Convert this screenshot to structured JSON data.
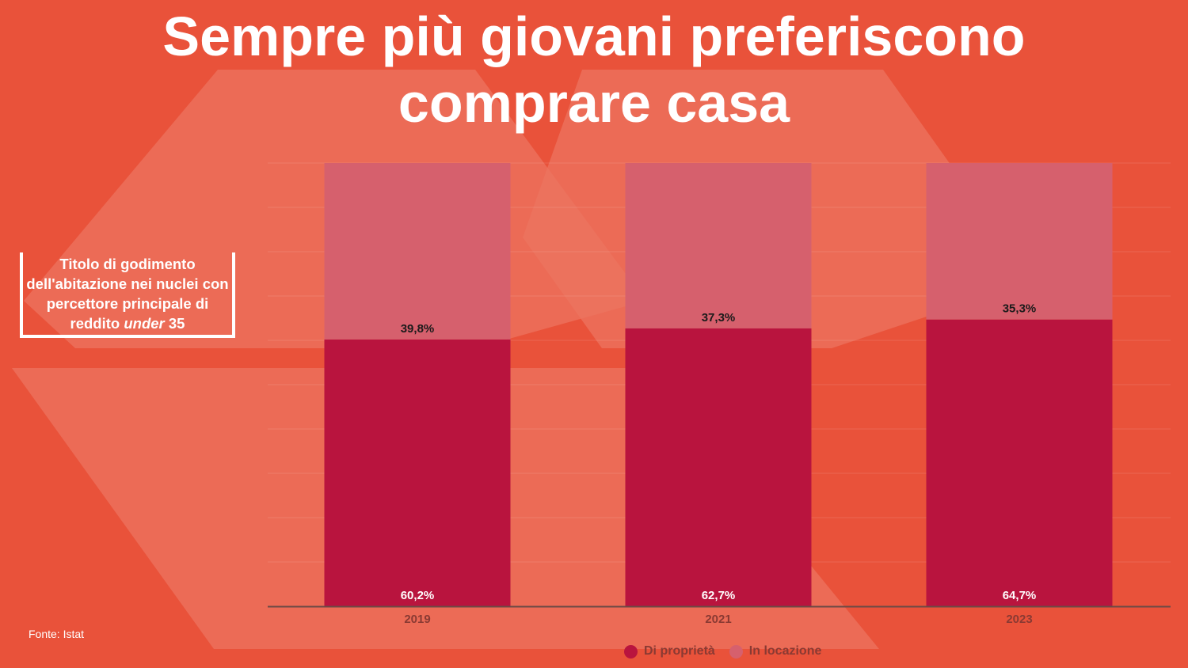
{
  "title": {
    "line1": "Sempre più giovani preferiscono",
    "line2": "comprare casa"
  },
  "subtitle": {
    "text": "Titolo di godimento dell'abitazione nei nuclei con percettore principale di reddito",
    "italic": "under",
    "suffix": "35"
  },
  "source": "Fonte: Istat",
  "colors": {
    "background": "#e9523a",
    "owned": "#b9143e",
    "rented": "#d6606d",
    "label_dark": "#1a1a1a",
    "label_light": "#ffffff"
  },
  "chart_data": {
    "type": "bar",
    "stacked": true,
    "percent": true,
    "categories": [
      "2019",
      "2021",
      "2023"
    ],
    "series": [
      {
        "name": "Di proprietà",
        "color": "#b9143e",
        "values": [
          60.2,
          62.7,
          64.7
        ],
        "labels": [
          "60,2%",
          "62,7%",
          "64,7%"
        ]
      },
      {
        "name": "In locazione",
        "color": "#d6606d",
        "values": [
          39.8,
          37.3,
          35.3
        ],
        "labels": [
          "39,8%",
          "37,3%",
          "35,3%"
        ]
      }
    ],
    "ylim": [
      0,
      100
    ],
    "grid": true,
    "legend": "bottom"
  }
}
